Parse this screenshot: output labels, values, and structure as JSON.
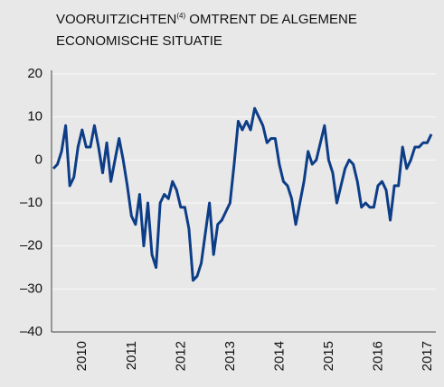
{
  "chart_data": {
    "type": "line",
    "title": [
      "VOORUITZICHTEN",
      "(4)",
      " OMTRENT DE ALGEMENE",
      "ECONOMISCHE SITUATIE"
    ],
    "categories": [
      null,
      null,
      null,
      null,
      null,
      null,
      "2010",
      null,
      null,
      null,
      null,
      null,
      null,
      null,
      null,
      null,
      null,
      null,
      "2011",
      null,
      null,
      null,
      null,
      null,
      null,
      null,
      null,
      null,
      null,
      null,
      "2012",
      null,
      null,
      null,
      null,
      null,
      null,
      null,
      null,
      null,
      null,
      null,
      "2013",
      null,
      null,
      null,
      null,
      null,
      null,
      null,
      null,
      null,
      null,
      null,
      "2014",
      null,
      null,
      null,
      null,
      null,
      null,
      null,
      null,
      null,
      null,
      null,
      "2015",
      null,
      null,
      null,
      null,
      null,
      null,
      null,
      null,
      null,
      null,
      null,
      "2016",
      null,
      null,
      null,
      null,
      null,
      null,
      null,
      null,
      null,
      null,
      null,
      "2017",
      null,
      null
    ],
    "series": [
      {
        "color": "#0d3d87",
        "values": [
          -2,
          -1,
          2,
          8,
          -6,
          -4,
          3,
          7,
          3,
          3,
          8,
          3,
          -3,
          4,
          -5,
          0,
          5,
          0,
          -6,
          -13,
          -15,
          -8,
          -20,
          -10,
          -22,
          -25,
          -10,
          -8,
          -9,
          -5,
          -7,
          -11,
          -11,
          -16,
          -28,
          -27,
          -24,
          -17,
          -10,
          -22,
          -15,
          -14,
          -12,
          -10,
          -1,
          9,
          7,
          9,
          7,
          12,
          10,
          8,
          4,
          5,
          5,
          -1,
          -5,
          -6,
          -9,
          -15,
          -10,
          -5,
          2,
          -1,
          0,
          4,
          8,
          0,
          -3,
          -10,
          -6,
          -2,
          0,
          -1,
          -5,
          -11,
          -10,
          -11,
          -11,
          -6,
          -5,
          -7,
          -14,
          -6,
          -6,
          3,
          -2,
          0,
          3,
          3,
          4,
          4,
          6
        ]
      }
    ],
    "ylim": [
      -40,
      20
    ],
    "yticks": [
      {
        "value": -40,
        "label": "–40"
      },
      {
        "value": -30,
        "label": "–30"
      },
      {
        "value": -20,
        "label": "–20"
      },
      {
        "value": -10,
        "label": "–10"
      },
      0,
      10,
      20
    ],
    "grid": true
  }
}
